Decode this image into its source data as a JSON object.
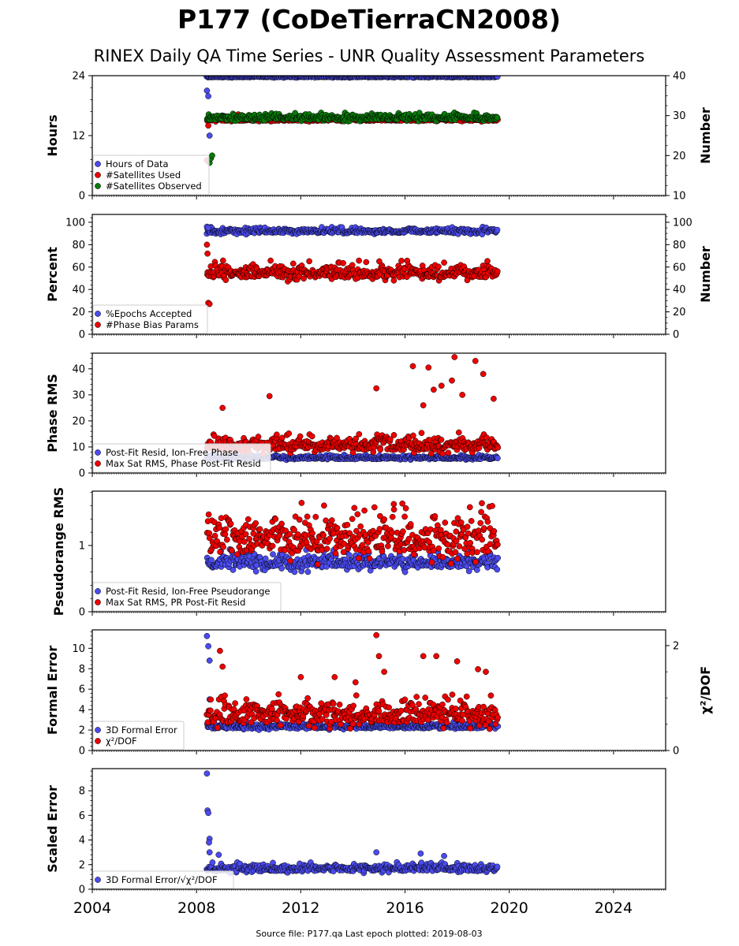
{
  "title": "P177 (CoDeTierraCN2008)",
  "subtitle": "RINEX Daily QA Time Series - UNR Quality Assessment Parameters",
  "source_note": "Source file: P177.qa Last epoch plotted: 2019-08-03",
  "colors": {
    "blue": "#4b4bf0",
    "red": "#ee0000",
    "green": "#0a7a0a",
    "edge": "#000000"
  },
  "chart_data": [
    {
      "type": "scatter",
      "ylabel": "Hours",
      "ylim": [
        0,
        24
      ],
      "yticks": [
        0,
        12,
        24
      ],
      "y2label": "Number",
      "y2lim": [
        10,
        40
      ],
      "y2ticks": [
        10,
        20,
        30,
        40
      ],
      "xlim": [
        2004,
        2026
      ],
      "legend": [
        "Hours of Data",
        "#Satellites Used",
        "#Satellites Observed"
      ],
      "series": [
        {
          "name": "Hours of Data",
          "color": "blue",
          "axis": "left",
          "band": [
            23.6,
            24.0
          ],
          "outliers": [
            [
              2008.4,
              21.0
            ],
            [
              2008.45,
              19.9
            ],
            [
              2008.5,
              12.0
            ]
          ]
        },
        {
          "name": "#Satellites Used",
          "color": "red",
          "axis": "right",
          "band": [
            28.5,
            29.6
          ],
          "outliers": [
            [
              2008.4,
              18.8
            ],
            [
              2008.45,
              27.5
            ],
            [
              2009.6,
              30.3
            ]
          ]
        },
        {
          "name": "#Satellites Observed",
          "color": "green",
          "axis": "right",
          "band": [
            28.5,
            30.8
          ],
          "outliers": [
            [
              2008.5,
              18.2
            ],
            [
              2008.55,
              19.3
            ],
            [
              2008.6,
              20.0
            ]
          ]
        }
      ]
    },
    {
      "type": "scatter",
      "ylabel": "Percent",
      "ylim": [
        0,
        107
      ],
      "yticks": [
        0,
        20,
        40,
        60,
        80,
        100
      ],
      "y2label": "Number",
      "y2lim": [
        0,
        107
      ],
      "y2ticks": [
        0,
        20,
        40,
        60,
        80,
        100
      ],
      "xlim": [
        2004,
        2026
      ],
      "legend": [
        "%Epochs Accepted",
        "#Phase Bias Params"
      ],
      "series": [
        {
          "name": "%Epochs Accepted",
          "color": "blue",
          "axis": "left",
          "band": [
            89,
            96
          ],
          "outliers": [
            [
              2008.4,
              96
            ],
            [
              2008.45,
              95
            ]
          ]
        },
        {
          "name": "#Phase Bias Params",
          "color": "red",
          "axis": "right",
          "band": [
            47,
            66
          ],
          "outliers": [
            [
              2008.4,
              80
            ],
            [
              2008.42,
              72
            ],
            [
              2008.45,
              28
            ],
            [
              2008.5,
              27
            ],
            [
              2017.5,
              64
            ]
          ]
        }
      ]
    },
    {
      "type": "scatter",
      "ylabel": "Phase RMS",
      "ylim": [
        0,
        46
      ],
      "yticks": [
        0,
        10,
        20,
        30,
        40
      ],
      "xlim": [
        2004,
        2026
      ],
      "legend": [
        "Post-Fit Resid, Ion-Free Phase",
        "Max Sat RMS, Phase Post-Fit Resid"
      ],
      "series": [
        {
          "name": "Post-Fit Resid, Ion-Free Phase",
          "color": "blue",
          "axis": "left",
          "band": [
            5,
            7
          ]
        },
        {
          "name": "Max Sat RMS, Phase Post-Fit Resid",
          "color": "red",
          "axis": "left",
          "band": [
            7,
            16
          ],
          "outliers": [
            [
              2009.0,
              25
            ],
            [
              2010.8,
              29.5
            ],
            [
              2014.9,
              32.5
            ],
            [
              2016.3,
              41
            ],
            [
              2016.9,
              40.5
            ],
            [
              2017.1,
              32
            ],
            [
              2017.4,
              33.5
            ],
            [
              2017.9,
              44.5
            ],
            [
              2017.8,
              35.5
            ],
            [
              2018.7,
              43
            ],
            [
              2019.0,
              38
            ],
            [
              2019.4,
              28.5
            ],
            [
              2016.7,
              26
            ],
            [
              2018.2,
              30
            ]
          ]
        }
      ]
    },
    {
      "type": "scatter",
      "ylabel": "Pseudorange RMS",
      "ylim": [
        0,
        1.82
      ],
      "yticks": [
        0,
        1
      ],
      "xlim": [
        2004,
        2026
      ],
      "legend": [
        "Post-Fit Resid, Ion-Free Pseudorange",
        "Max Sat RMS, PR Post-Fit Resid"
      ],
      "series": [
        {
          "name": "Post-Fit Resid, Ion-Free Pseudorange",
          "color": "blue",
          "axis": "left",
          "band": [
            0.6,
            0.95
          ]
        },
        {
          "name": "Max Sat RMS, PR Post-Fit Resid",
          "color": "red",
          "axis": "left",
          "band": [
            0.7,
            1.65
          ]
        }
      ]
    },
    {
      "type": "scatter",
      "ylabel": "Formal Error",
      "ylim": [
        0,
        11.8
      ],
      "yticks": [
        0,
        2,
        4,
        6,
        8,
        10
      ],
      "y2label": "χ²/DOF",
      "y2lim": [
        0,
        2.3
      ],
      "y2ticks": [
        0,
        2
      ],
      "xlim": [
        2004,
        2026
      ],
      "legend": [
        "3D Formal Error",
        "χ²/DOF"
      ],
      "series": [
        {
          "name": "3D Formal Error",
          "color": "blue",
          "axis": "left",
          "band": [
            2.0,
            2.8
          ],
          "outliers": [
            [
              2008.4,
              11.2
            ],
            [
              2008.45,
              10.2
            ],
            [
              2008.5,
              8.8
            ],
            [
              2008.5,
              5.0
            ]
          ]
        },
        {
          "name": "χ²/DOF",
          "color": "red",
          "axis": "right",
          "band": [
            0.4,
            1.08
          ],
          "outliers": [
            [
              2008.9,
              1.9
            ],
            [
              2009.0,
              1.6
            ],
            [
              2014.9,
              2.2
            ],
            [
              2015.0,
              1.8
            ],
            [
              2015.2,
              1.5
            ],
            [
              2016.7,
              1.8
            ],
            [
              2017.2,
              1.8
            ],
            [
              2018.0,
              1.7
            ],
            [
              2018.8,
              1.55
            ],
            [
              2019.1,
              1.5
            ],
            [
              2012.0,
              1.4
            ],
            [
              2013.3,
              1.4
            ],
            [
              2014.1,
              1.3
            ]
          ]
        }
      ]
    },
    {
      "type": "scatter",
      "ylabel": "Scaled Error",
      "ylim": [
        0,
        9.8
      ],
      "yticks": [
        0,
        2,
        4,
        6,
        8
      ],
      "xlim": [
        2004,
        2026
      ],
      "xticks": [
        2004,
        2008,
        2012,
        2016,
        2020,
        2024
      ],
      "legend": [
        "3D Formal Error/√χ²/DOF"
      ],
      "series": [
        {
          "name": "3D Formal Error/√χ²/DOF",
          "color": "blue",
          "axis": "left",
          "band": [
            1.3,
            2.2
          ],
          "outliers": [
            [
              2008.4,
              9.4
            ],
            [
              2008.42,
              6.4
            ],
            [
              2008.45,
              6.2
            ],
            [
              2008.5,
              4.1
            ],
            [
              2008.48,
              3.8
            ],
            [
              2008.5,
              3.0
            ],
            [
              2008.85,
              2.8
            ],
            [
              2014.9,
              3.0
            ],
            [
              2016.6,
              2.9
            ],
            [
              2017.5,
              2.7
            ]
          ]
        }
      ]
    }
  ]
}
